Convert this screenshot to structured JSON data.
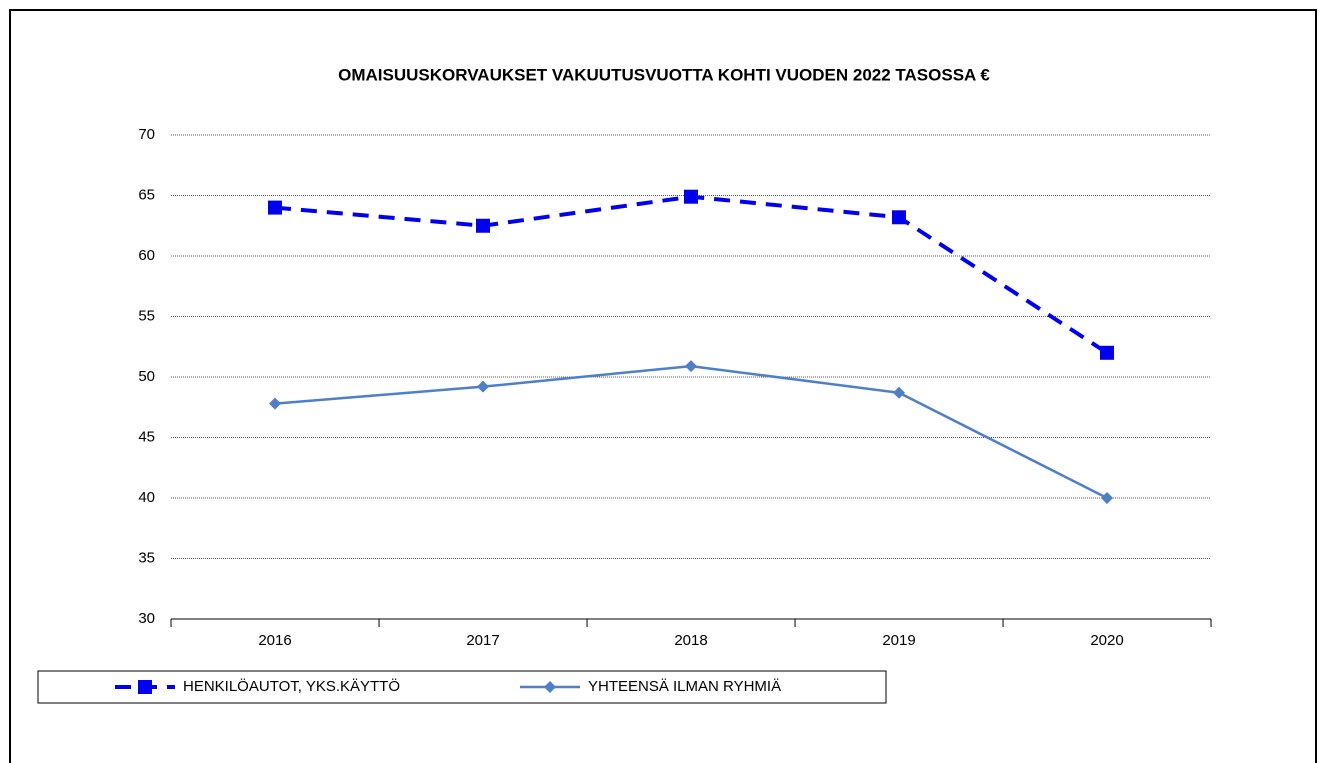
{
  "chart_data": {
    "type": "line",
    "title": "OMAISUUSKORVAUKSET VAKUUTUSVUOTTA KOHTI VUODEN 2022 TASOSSA €",
    "categories": [
      "2016",
      "2017",
      "2018",
      "2019",
      "2020"
    ],
    "series": [
      {
        "name": "HENKILÖAUTOT, YKS.KÄYTTÖ",
        "color": "#0000ee",
        "dashed": true,
        "marker": "square",
        "values": [
          64.0,
          62.5,
          64.9,
          63.2,
          52.0
        ]
      },
      {
        "name": "YHTEENSÄ ILMAN RYHMIÄ",
        "color": "#4f7fc8",
        "dashed": false,
        "marker": "diamond",
        "values": [
          47.8,
          49.2,
          50.9,
          48.7,
          40.0
        ]
      }
    ],
    "ylim": [
      30,
      70
    ],
    "yticks": [
      30,
      35,
      40,
      45,
      50,
      55,
      60,
      65,
      70
    ],
    "grid": true,
    "legend": "bottom"
  }
}
